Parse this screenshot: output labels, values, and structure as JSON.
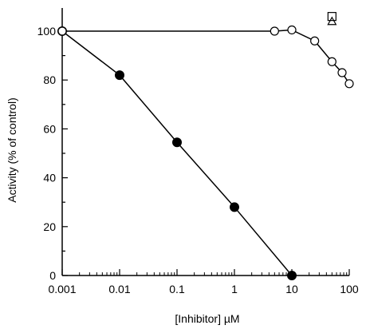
{
  "chart_data": {
    "type": "scatter",
    "title": "",
    "xlabel": "[Inhibitor]  µM",
    "ylabel": "Activity (% of control)",
    "xscale": "log",
    "xlim": [
      0.001,
      100
    ],
    "ylim": [
      0,
      110
    ],
    "x_ticks": [
      {
        "value": 0.001,
        "label": "0.001"
      },
      {
        "value": 0.01,
        "label": "0.01"
      },
      {
        "value": 0.1,
        "label": "0.1"
      },
      {
        "value": 1,
        "label": "1"
      },
      {
        "value": 10,
        "label": "10"
      },
      {
        "value": 100,
        "label": "100"
      }
    ],
    "y_ticks": [
      {
        "value": 0,
        "label": "0"
      },
      {
        "value": 20,
        "label": "20"
      },
      {
        "value": 40,
        "label": "40"
      },
      {
        "value": 60,
        "label": "60"
      },
      {
        "value": 80,
        "label": "80"
      },
      {
        "value": 100,
        "label": "100"
      }
    ],
    "grid": false,
    "legend": "none",
    "series": [
      {
        "marker": "filled-circle",
        "line": true,
        "color": "#000000",
        "points": [
          {
            "x": 0.001,
            "y": 100
          },
          {
            "x": 0.01,
            "y": 82
          },
          {
            "x": 0.1,
            "y": 54.5
          },
          {
            "x": 1,
            "y": 28
          },
          {
            "x": 10,
            "y": 0
          }
        ]
      },
      {
        "marker": "open-circle",
        "line": true,
        "color": "#000000",
        "points": [
          {
            "x": 0.001,
            "y": 100
          },
          {
            "x": 5,
            "y": 100
          },
          {
            "x": 10,
            "y": 100.5
          },
          {
            "x": 25,
            "y": 96
          },
          {
            "x": 50,
            "y": 87.5
          },
          {
            "x": 75,
            "y": 83
          },
          {
            "x": 100,
            "y": 78.5
          }
        ]
      },
      {
        "marker": "open-square",
        "line": false,
        "color": "#000000",
        "points": [
          {
            "x": 50,
            "y": 106
          }
        ]
      },
      {
        "marker": "open-triangle",
        "line": false,
        "color": "#000000",
        "points": [
          {
            "x": 50,
            "y": 104
          }
        ]
      }
    ]
  }
}
